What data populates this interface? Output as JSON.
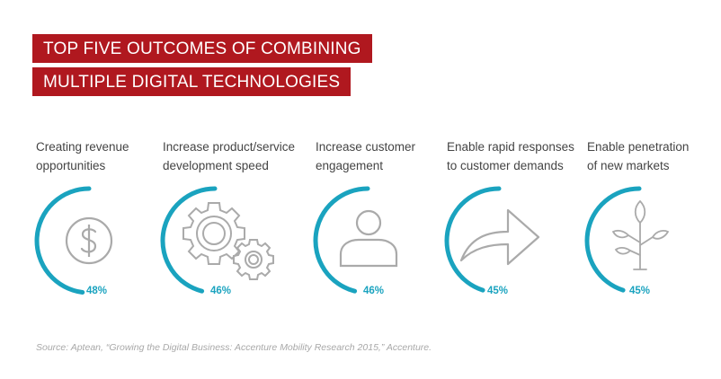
{
  "title": {
    "line1": "TOP FIVE OUTCOMES OF COMBINING",
    "line2": "MULTIPLE DIGITAL TECHNOLOGIES"
  },
  "chart_data": {
    "type": "radial-progress",
    "title": "TOP FIVE OUTCOMES OF COMBINING MULTIPLE DIGITAL TECHNOLOGIES",
    "unit": "%",
    "items": [
      {
        "label": [
          "Creating revenue",
          "opportunities"
        ],
        "value": 48,
        "value_label": "48%",
        "icon": "dollar-icon"
      },
      {
        "label": [
          "Increase product/service",
          "development speed"
        ],
        "value": 46,
        "value_label": "46%",
        "icon": "gears-icon"
      },
      {
        "label": [
          "Increase customer",
          "engagement"
        ],
        "value": 46,
        "value_label": "46%",
        "icon": "person-icon"
      },
      {
        "label": [
          "Enable rapid responses",
          "to customer demands"
        ],
        "value": 45,
        "value_label": "45%",
        "icon": "arrow-icon"
      },
      {
        "label": [
          "Enable penetration",
          "of new markets"
        ],
        "value": 45,
        "value_label": "45%",
        "icon": "sprout-icon"
      }
    ]
  },
  "colors": {
    "accent": "#1aa3bf",
    "title_bg": "#b0181f",
    "icon_stroke": "#aaaaaa",
    "label_text": "#444444"
  },
  "source": "Source: Aptean, “Growing the Digital Business: Accenture Mobility Research 2015,” Accenture."
}
